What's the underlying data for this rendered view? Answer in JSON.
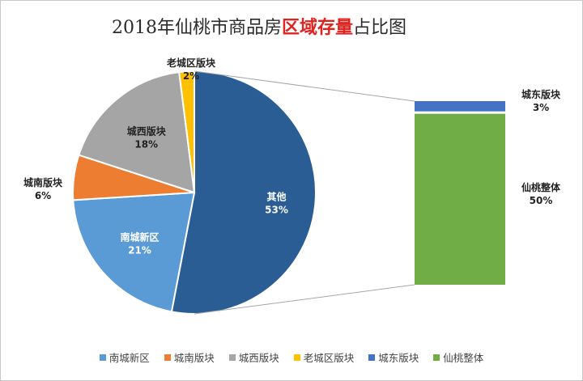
{
  "title": {
    "prefix": "2018年仙桃市商品房",
    "highlight": "区域存量",
    "suffix": "占比图"
  },
  "chart_data": {
    "type": "bar-of-pie",
    "title": "2018年仙桃市商品房区域存量占比图",
    "pie": [
      {
        "name": "其他",
        "value": 53,
        "label": "53%",
        "color": "#2a5d94"
      },
      {
        "name": "南城新区",
        "value": 21,
        "label": "21%",
        "color": "#5b9bd5"
      },
      {
        "name": "城南版块",
        "value": 6,
        "label": "6%",
        "color": "#ed7d31"
      },
      {
        "name": "城西版块",
        "value": 18,
        "label": "18%",
        "color": "#a5a5a5"
      },
      {
        "name": "老城区版块",
        "value": 2,
        "label": "2%",
        "color": "#ffc000"
      }
    ],
    "bar": [
      {
        "name": "城东版块",
        "value": 3,
        "label": "3%",
        "color": "#4472c4"
      },
      {
        "name": "仙桃整体",
        "value": 50,
        "label": "50%",
        "color": "#70ad47"
      }
    ],
    "legend": [
      {
        "name": "南城新区",
        "color": "#5b9bd5"
      },
      {
        "name": "城南版块",
        "color": "#ed7d31"
      },
      {
        "name": "城西版块",
        "color": "#a5a5a5"
      },
      {
        "name": "老城区版块",
        "color": "#ffc000"
      },
      {
        "name": "城东版块",
        "color": "#4472c4"
      },
      {
        "name": "仙桃整体",
        "color": "#70ad47"
      }
    ],
    "legend_position": "bottom"
  }
}
